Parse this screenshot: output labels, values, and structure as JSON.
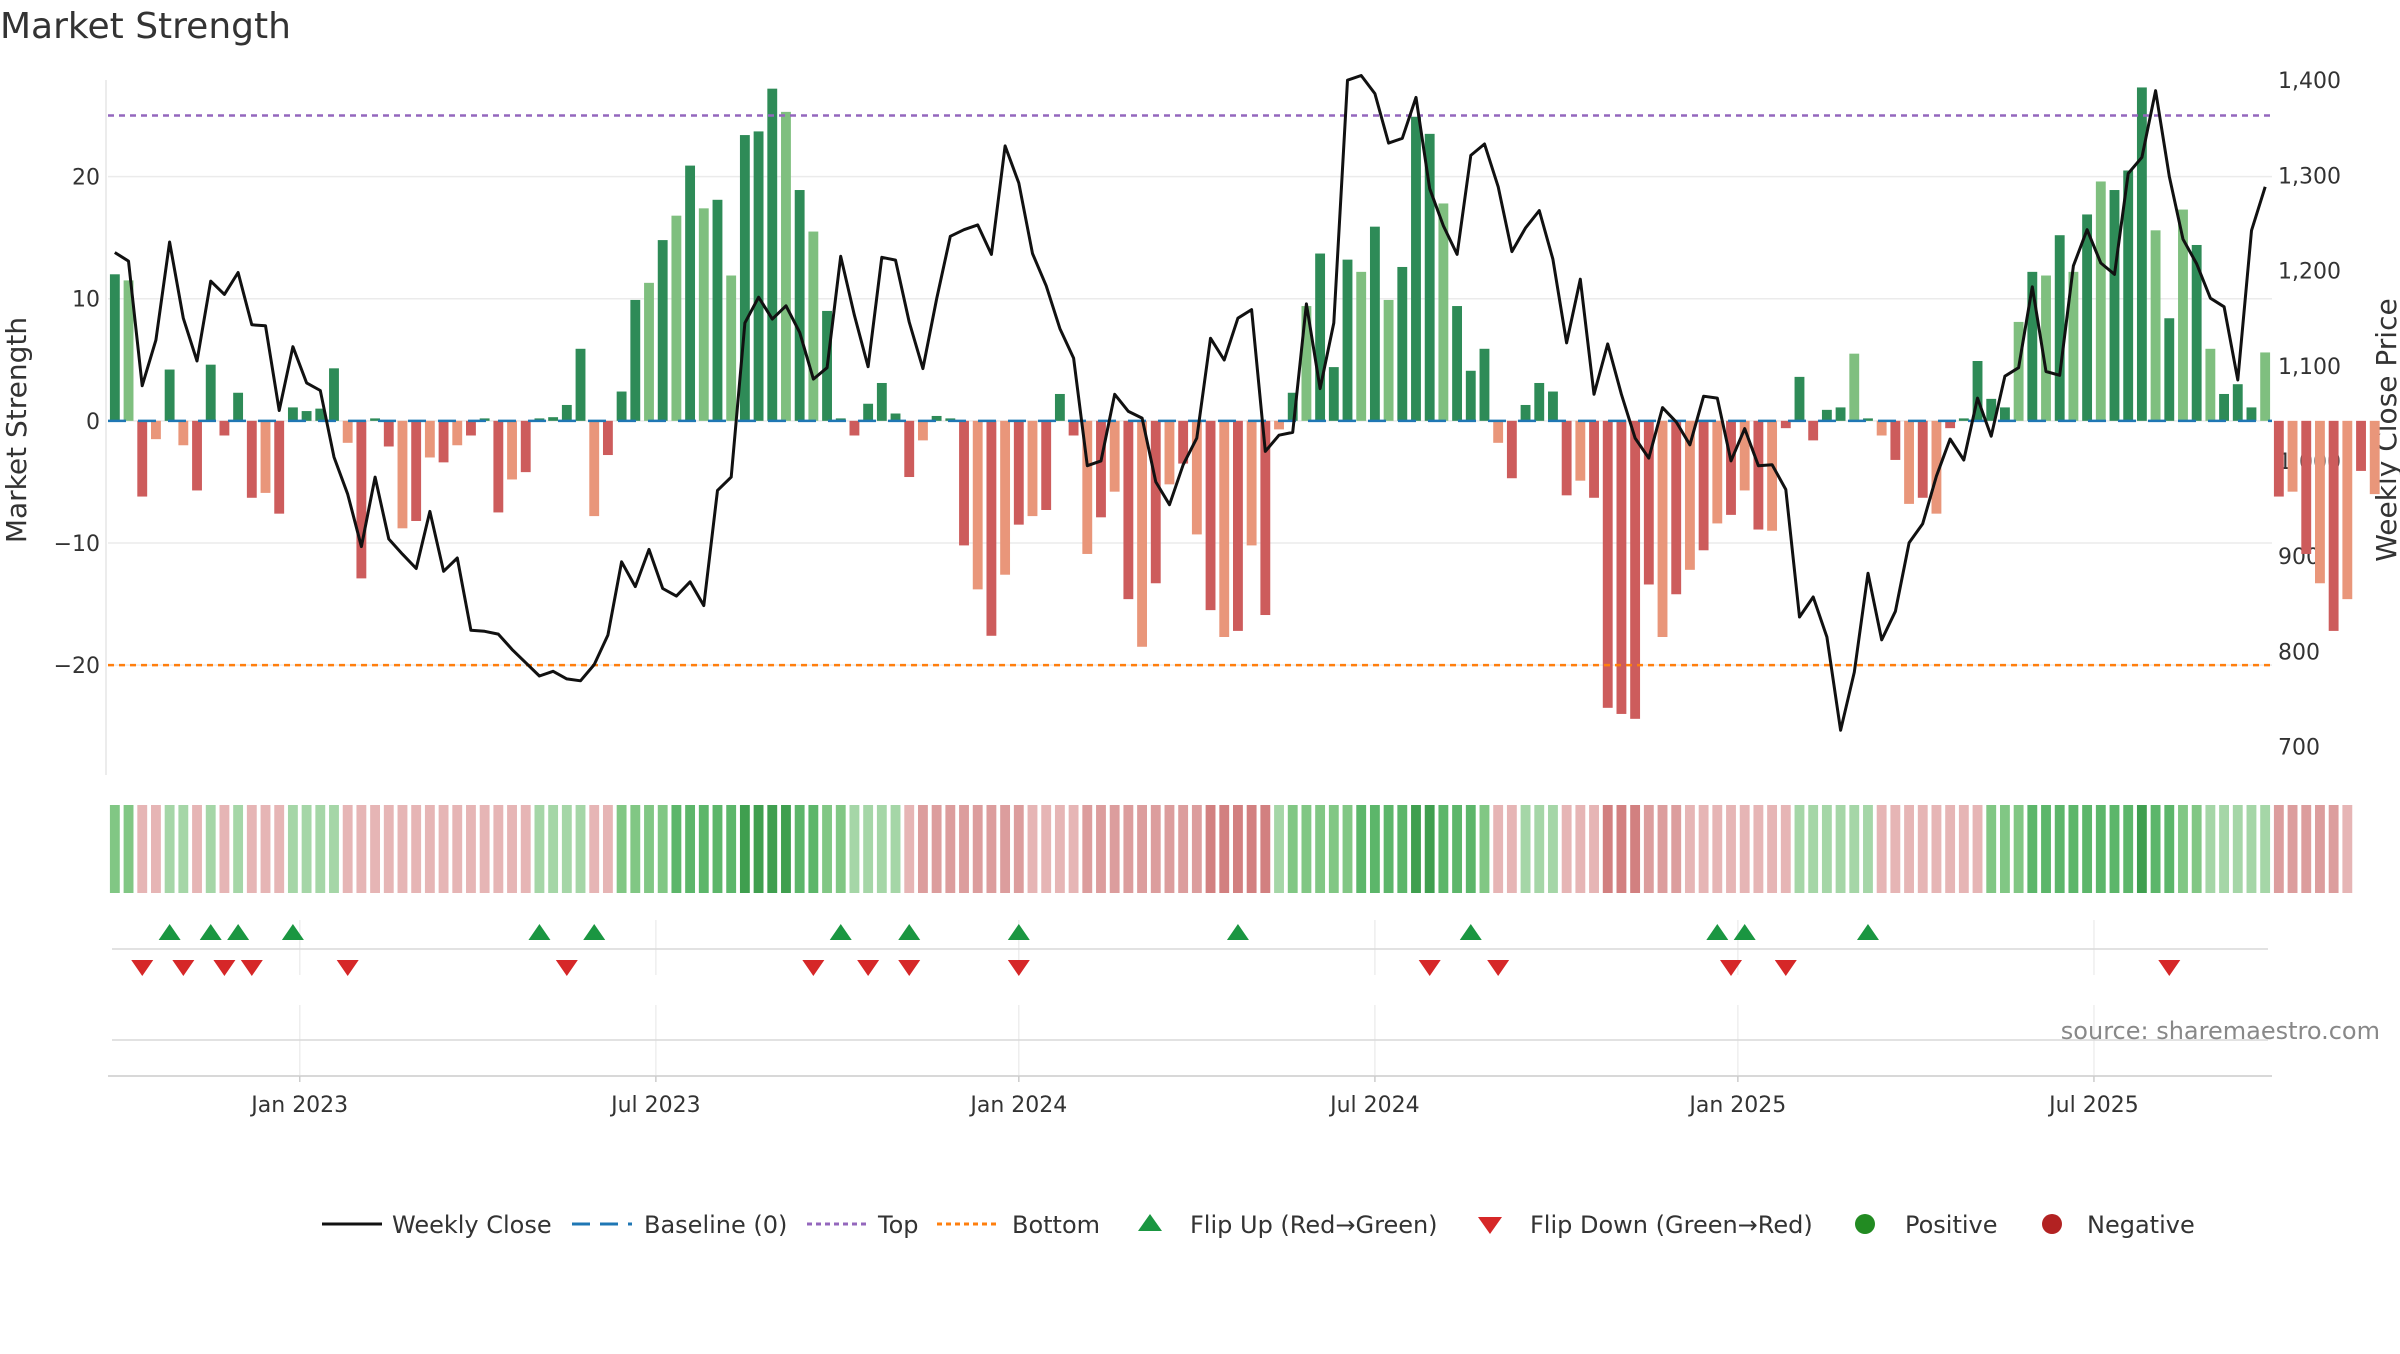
{
  "title": "Market Strength",
  "colors": {
    "pos_dark": "#2e8b57",
    "pos_light": "#7fbf7f",
    "neg_dark": "#cd5c5c",
    "neg_light": "#e9967a",
    "price_line": "#111111",
    "baseline": "#1f77b4",
    "top": "#9467bd",
    "bottom": "#ff7f0e",
    "flip_up": "#1a9641",
    "flip_down": "#d62728",
    "positive": "#228b22",
    "negative": "#b22222",
    "grid": "#ebebeb",
    "axis_text": "#333333",
    "source_text": "#888888"
  },
  "chart_data": {
    "type": "bar+line",
    "title": "Market Strength",
    "ylabel": "Market Strength",
    "y2label": "Weekly Close Price",
    "ylim": [
      -29,
      27.5
    ],
    "y2lim": [
      670,
      1395
    ],
    "yticks": [
      20,
      10,
      0,
      -10,
      -20
    ],
    "yticklabels": [
      "20",
      "10",
      "0",
      "−10",
      "−20"
    ],
    "y2ticks": [
      1400,
      1300,
      1200,
      1100,
      1000,
      900,
      800,
      700
    ],
    "y2ticklabels": [
      "1,400",
      "1,300",
      "1,200",
      "1,100",
      "1,000",
      "900",
      "800",
      "700"
    ],
    "top_level": 25,
    "bottom_level": -20,
    "x_start": "2022-09-05",
    "x_end": "2025-10-06",
    "week_count": 158,
    "xticks": [
      "Jan 2023",
      "Jul 2023",
      "Jan 2024",
      "Jul 2024",
      "Jan 2025",
      "Jul 2025"
    ],
    "xtick_index": [
      14,
      40,
      66.5,
      92.5,
      119,
      145
    ],
    "strength": [
      12.0,
      11.5,
      -6.2,
      -1.5,
      4.2,
      -2.0,
      -5.7,
      4.6,
      -1.2,
      2.3,
      -6.3,
      -5.9,
      -7.6,
      1.1,
      0.8,
      1.0,
      4.3,
      -1.8,
      -12.9,
      0.2,
      -2.1,
      -8.8,
      -8.2,
      -3.0,
      -3.4,
      -2.0,
      -1.2,
      0.2,
      -7.5,
      -4.8,
      -4.2,
      0.2,
      0.3,
      1.3,
      5.9,
      -7.8,
      -2.8,
      2.4,
      9.9,
      11.3,
      14.8,
      16.8,
      20.9,
      17.4,
      18.1,
      11.9,
      23.4,
      23.7,
      27.2,
      25.3,
      18.9,
      15.5,
      9.0,
      0.2,
      -1.2,
      1.4,
      3.1,
      0.6,
      -4.6,
      -1.6,
      0.4,
      0.2,
      -10.2,
      -13.8,
      -17.6,
      -12.6,
      -8.5,
      -7.8,
      -7.3,
      2.2,
      -1.2,
      -10.9,
      -7.9,
      -5.8,
      -14.6,
      -18.5,
      -13.3,
      -5.2,
      -3.5,
      -9.3,
      -15.5,
      -17.7,
      -17.2,
      -10.2,
      -15.9,
      -0.7,
      2.3,
      9.4,
      13.7,
      4.4,
      13.2,
      12.2,
      15.9,
      9.9,
      12.6,
      24.9,
      23.5,
      17.8,
      9.4,
      4.1,
      5.9,
      -1.8,
      -4.7,
      1.3,
      3.1,
      2.4,
      -6.1,
      -4.9,
      -6.3,
      -23.5,
      -24.0,
      -24.4,
      -13.4,
      -17.7,
      -14.2,
      -12.2,
      -10.6,
      -8.4,
      -7.7,
      -5.7,
      -8.9,
      -9.0,
      -0.6,
      3.6,
      -1.6,
      0.9,
      1.1,
      5.5,
      0.2,
      -1.2,
      -3.2,
      -6.8,
      -6.3,
      -7.6,
      -0.6,
      0.2,
      4.9,
      1.8,
      1.1,
      8.1,
      12.2,
      11.9,
      15.2,
      12.2,
      16.9,
      19.6,
      18.9,
      20.5,
      27.3,
      15.6,
      8.4,
      17.3,
      14.4,
      5.9,
      2.2,
      3.0,
      1.1,
      5.6,
      -6.2,
      -5.8,
      -10.9,
      -13.3,
      -17.2,
      -14.6,
      -4.1,
      -6.0
    ],
    "close": [
      1219,
      1210,
      1079,
      1127,
      1230,
      1150,
      1105,
      1189,
      1175,
      1198,
      1143,
      1142,
      1053,
      1120,
      1082,
      1074,
      1004,
      965,
      910,
      983,
      918,
      902,
      887,
      947,
      884,
      898,
      822,
      821,
      818,
      802,
      788,
      774,
      779,
      771,
      769,
      786,
      817,
      894,
      868,
      907,
      866,
      858,
      873,
      848,
      969,
      983,
      1145,
      1172,
      1149,
      1163,
      1135,
      1086,
      1098,
      1215,
      1153,
      1099,
      1214,
      1211,
      1146,
      1097,
      1170,
      1236,
      1243,
      1248,
      1217,
      1331,
      1292,
      1218,
      1184,
      1139,
      1108,
      995,
      1000,
      1070,
      1052,
      1045,
      978,
      954,
      996,
      1024,
      1129,
      1106,
      1150,
      1159,
      1010,
      1027,
      1030,
      1165,
      1076,
      1145,
      1400,
      1405,
      1386,
      1334,
      1339,
      1382,
      1286,
      1247,
      1217,
      1321,
      1333,
      1288,
      1220,
      1245,
      1263,
      1212,
      1124,
      1191,
      1070,
      1123,
      1070,
      1024,
      1003,
      1056,
      1041,
      1017,
      1068,
      1066,
      1000,
      1034,
      995,
      996,
      970,
      836,
      857,
      815,
      717,
      778,
      882,
      812,
      842,
      914,
      934,
      984,
      1023,
      1001,
      1066,
      1026,
      1089,
      1098,
      1183,
      1094,
      1090,
      1205,
      1243,
      1208,
      1196,
      1302,
      1319,
      1389,
      1299,
      1233,
      1207,
      1171,
      1162,
      1085,
      1242,
      1288
    ],
    "heat_levels": [
      2,
      2,
      1,
      1,
      1,
      1,
      1,
      1,
      1,
      1,
      1,
      1,
      1,
      1,
      1,
      1,
      1,
      1,
      1,
      1,
      1,
      1,
      1,
      1,
      1,
      1,
      1,
      1,
      1,
      1,
      1,
      1,
      1,
      1,
      1,
      1,
      1,
      2,
      2,
      2,
      2,
      3,
      3,
      3,
      3,
      3,
      4,
      4,
      4,
      4,
      3,
      3,
      2,
      2,
      1,
      1,
      1,
      1,
      1,
      2,
      2,
      2,
      2,
      2,
      2,
      2,
      2,
      1,
      1,
      1,
      1,
      2,
      2,
      2,
      2,
      2,
      2,
      2,
      2,
      2,
      3,
      3,
      3,
      3,
      3,
      1,
      2,
      2,
      2,
      2,
      2,
      3,
      3,
      3,
      3,
      4,
      4,
      3,
      3,
      3,
      2,
      1,
      1,
      1,
      1,
      1,
      1,
      1,
      1,
      3,
      3,
      3,
      2,
      2,
      2,
      1,
      1,
      1,
      1,
      1,
      1,
      1,
      1,
      1,
      1,
      1,
      1,
      1,
      1,
      1,
      1,
      1,
      1,
      1,
      1,
      1,
      1,
      2,
      2,
      2,
      3,
      3,
      3,
      3,
      3,
      3,
      3,
      3,
      4,
      3,
      3,
      2,
      2,
      1,
      1,
      1,
      1,
      1,
      2,
      2,
      2,
      2,
      2,
      1
    ],
    "heat_sign": [
      1,
      1,
      -1,
      -1,
      1,
      1,
      -1,
      1,
      -1,
      1,
      -1,
      -1,
      -1,
      1,
      1,
      1,
      1,
      -1,
      -1,
      -1,
      -1,
      -1,
      -1,
      -1,
      -1,
      -1,
      -1,
      -1,
      -1,
      -1,
      -1,
      1,
      1,
      1,
      1,
      -1,
      -1,
      1,
      1,
      1,
      1,
      1,
      1,
      1,
      1,
      1,
      1,
      1,
      1,
      1,
      1,
      1,
      1,
      1,
      1,
      1,
      1,
      1,
      -1,
      -1,
      -1,
      -1,
      -1,
      -1,
      -1,
      -1,
      -1,
      -1,
      -1,
      -1,
      -1,
      -1,
      -1,
      -1,
      -1,
      -1,
      -1,
      -1,
      -1,
      -1,
      -1,
      -1,
      -1,
      -1,
      -1,
      1,
      1,
      1,
      1,
      1,
      1,
      1,
      1,
      1,
      1,
      1,
      1,
      1,
      1,
      1,
      1,
      -1,
      -1,
      1,
      1,
      1,
      -1,
      -1,
      -1,
      -1,
      -1,
      -1,
      -1,
      -1,
      -1,
      -1,
      -1,
      -1,
      -1,
      -1,
      -1,
      -1,
      -1,
      1,
      1,
      1,
      1,
      1,
      1,
      -1,
      -1,
      -1,
      -1,
      -1,
      -1,
      -1,
      -1,
      1,
      1,
      1,
      1,
      1,
      1,
      1,
      1,
      1,
      1,
      1,
      1,
      1,
      1,
      1,
      1,
      1,
      1,
      1,
      1,
      1,
      -1,
      -1,
      -1,
      -1,
      -1,
      -1,
      -1,
      -1
    ],
    "flip_up_idx": [
      4,
      7,
      9,
      13,
      31,
      35,
      53,
      58,
      66,
      82,
      99,
      117,
      119,
      128
    ],
    "flip_down_idx": [
      2,
      5,
      8,
      10,
      17,
      33,
      51,
      55,
      58,
      66,
      96,
      101,
      118,
      122,
      150
    ],
    "legend": [
      "Weekly Close",
      "Baseline (0)",
      "Top",
      "Bottom",
      "Flip Up (Red→Green)",
      "Flip Down (Green→Red)",
      "Positive",
      "Negative"
    ],
    "legend_position": "bottom",
    "source": "source: sharemaestro.com"
  }
}
